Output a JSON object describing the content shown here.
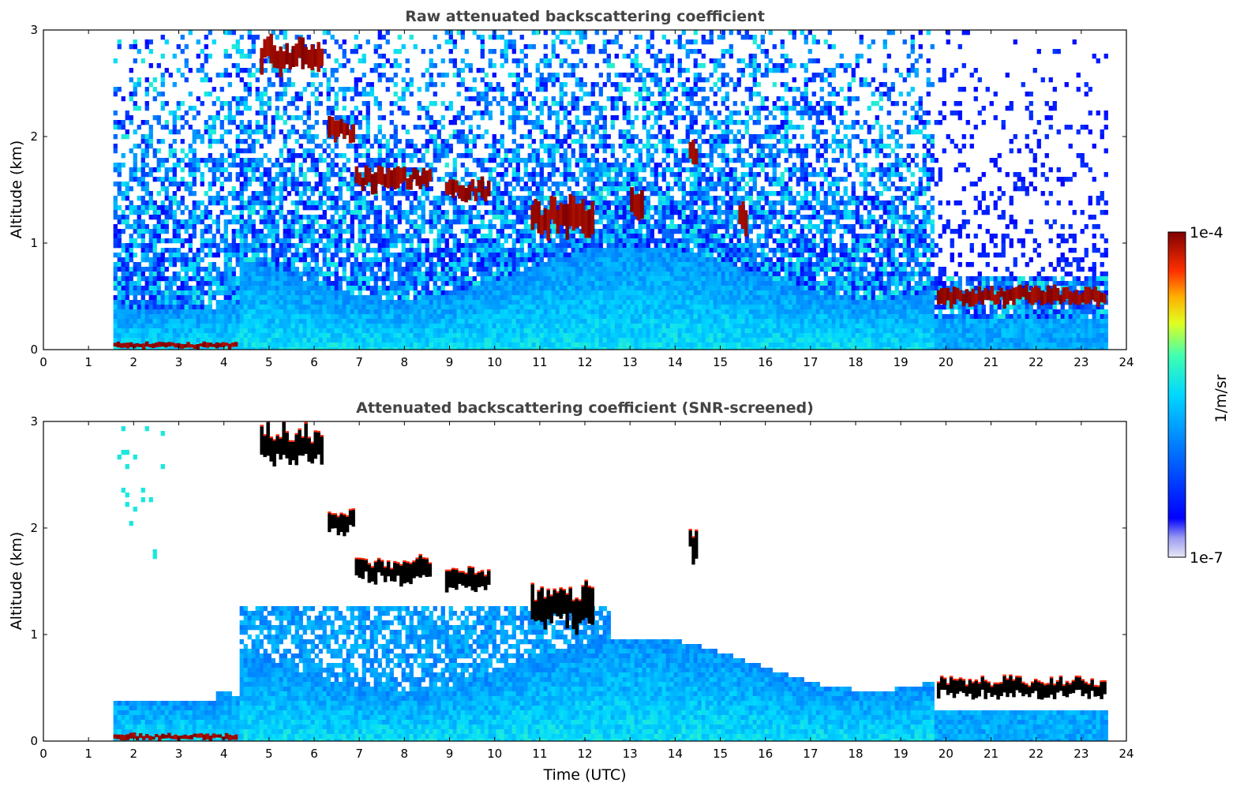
{
  "chart_data": [
    {
      "type": "heatmap",
      "title": "Raw attenuated backscattering coefficient",
      "xlabel": "",
      "ylabel": "Altitude (km)",
      "xlim": [
        0,
        24
      ],
      "ylim": [
        0,
        3
      ],
      "xticks": [
        "0",
        "1",
        "2",
        "3",
        "4",
        "5",
        "6",
        "7",
        "8",
        "9",
        "10",
        "11",
        "12",
        "13",
        "14",
        "15",
        "16",
        "17",
        "18",
        "19",
        "20",
        "21",
        "22",
        "23",
        "24"
      ],
      "yticks": [
        "0",
        "1",
        "2",
        "3"
      ],
      "data_time_range": [
        1.55,
        23.55
      ],
      "screened": false,
      "features": [
        {
          "kind": "surface-layer",
          "x": [
            1.55,
            4.3
          ],
          "y": [
            0.0,
            0.08
          ],
          "level": 1.0
        },
        {
          "kind": "boundary-layer-top",
          "x": [
            1.55,
            4.0
          ],
          "y": [
            0.3,
            0.45
          ]
        },
        {
          "kind": "cloud",
          "x": [
            4.8,
            6.2
          ],
          "y": [
            2.55,
            3.0
          ],
          "level": 1.0
        },
        {
          "kind": "cloud",
          "x": [
            6.3,
            6.9
          ],
          "y": [
            1.9,
            2.2
          ],
          "level": 1.0
        },
        {
          "kind": "cloud",
          "x": [
            6.9,
            8.6
          ],
          "y": [
            1.45,
            1.75
          ],
          "level": 1.0
        },
        {
          "kind": "cloud",
          "x": [
            8.9,
            9.9
          ],
          "y": [
            1.35,
            1.65
          ],
          "level": 1.0
        },
        {
          "kind": "cloud",
          "x": [
            10.8,
            12.2
          ],
          "y": [
            1.0,
            1.5
          ],
          "level": 1.0
        },
        {
          "kind": "cloud",
          "x": [
            13.0,
            13.3
          ],
          "y": [
            1.1,
            1.6
          ],
          "level": 1.0
        },
        {
          "kind": "cloud",
          "x": [
            14.3,
            14.5
          ],
          "y": [
            1.65,
            2.05
          ],
          "level": 1.0
        },
        {
          "kind": "cloud",
          "x": [
            15.4,
            15.6
          ],
          "y": [
            1.0,
            1.4
          ],
          "level": 1.0
        },
        {
          "kind": "low-cloud",
          "x": [
            19.8,
            23.55
          ],
          "y": [
            0.38,
            0.62
          ],
          "level": 1.0
        }
      ]
    },
    {
      "type": "heatmap",
      "title": "Attenuated backscattering coefficient (SNR-screened)",
      "xlabel": "Time (UTC)",
      "ylabel": "Altitude (km)",
      "xlim": [
        0,
        24
      ],
      "ylim": [
        0,
        3
      ],
      "xticks": [
        "0",
        "1",
        "2",
        "3",
        "4",
        "5",
        "6",
        "7",
        "8",
        "9",
        "10",
        "11",
        "12",
        "13",
        "14",
        "15",
        "16",
        "17",
        "18",
        "19",
        "20",
        "21",
        "22",
        "23",
        "24"
      ],
      "yticks": [
        "0",
        "1",
        "2",
        "3"
      ],
      "data_time_range": [
        1.55,
        23.55
      ],
      "screened": true,
      "features": [
        {
          "kind": "surface-layer",
          "x": [
            1.55,
            4.3
          ],
          "y": [
            0.0,
            0.08
          ],
          "level": 1.0
        },
        {
          "kind": "cloud",
          "x": [
            4.8,
            6.2
          ],
          "y": [
            2.55,
            3.0
          ],
          "level": 1.0
        },
        {
          "kind": "cloud",
          "x": [
            6.3,
            6.9
          ],
          "y": [
            1.9,
            2.2
          ],
          "level": 1.0
        },
        {
          "kind": "cloud",
          "x": [
            6.9,
            8.6
          ],
          "y": [
            1.45,
            1.75
          ],
          "level": 1.0
        },
        {
          "kind": "cloud",
          "x": [
            8.9,
            9.9
          ],
          "y": [
            1.35,
            1.65
          ],
          "level": 1.0
        },
        {
          "kind": "cloud",
          "x": [
            10.8,
            12.2
          ],
          "y": [
            1.0,
            1.5
          ],
          "level": 1.0
        },
        {
          "kind": "cloud",
          "x": [
            14.3,
            14.5
          ],
          "y": [
            1.65,
            2.05
          ],
          "level": 1.0
        },
        {
          "kind": "low-cloud",
          "x": [
            19.8,
            23.55
          ],
          "y": [
            0.38,
            0.62
          ],
          "level": 1.0
        }
      ]
    }
  ],
  "colorbar": {
    "label": "1/m/sr",
    "max_label": "1e-4",
    "min_label": "1e-7",
    "range": [
      1e-07,
      0.0001
    ],
    "scale": "log",
    "colormap": "jet",
    "colors": [
      "#e4e4f8",
      "#0000ff",
      "#00bfff",
      "#00ffaa",
      "#ffff00",
      "#ff8000",
      "#ff0000",
      "#800000"
    ]
  }
}
